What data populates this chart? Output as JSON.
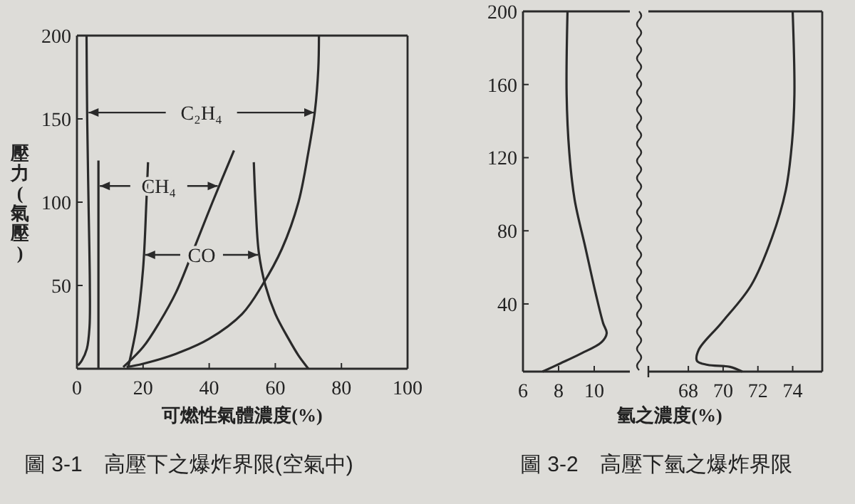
{
  "chart_data": [
    {
      "type": "line",
      "title": "圖 3-1　高壓下之爆炸界限(空氣中)",
      "xlabel": "可燃性氣體濃度(%)",
      "ylabel": "壓力(氣壓)",
      "xlim": [
        0,
        100
      ],
      "ylim": [
        0,
        200
      ],
      "xticks": [
        0,
        20,
        40,
        60,
        80,
        100
      ],
      "yticks": [
        50,
        100,
        150,
        200
      ],
      "annotations": [
        {
          "text": "C₂H₄",
          "x": 72.2,
          "y": 153.8
        },
        {
          "text": "CH₄",
          "x": 43,
          "y": 109.7
        },
        {
          "text": "CO",
          "x": 55.2,
          "y": 68.4
        }
      ],
      "series": [
        {
          "color": "#2a2a2a",
          "x": [
            0.3,
            1.5,
            3,
            3.8,
            3.9,
            3.5,
            3.1,
            2.9
          ],
          "values": [
            2,
            5,
            12,
            25,
            50,
            100,
            150,
            200
          ]
        },
        {
          "color": "#2a2a2a",
          "x": [
            15,
            20,
            30,
            40,
            50,
            56,
            62,
            67,
            70,
            72,
            73,
            73.2
          ],
          "values": [
            1,
            3,
            9,
            18,
            33,
            50,
            72,
            100,
            130,
            155,
            180,
            200
          ]
        },
        {
          "color": "#2a2a2a",
          "x": [
            6.5,
            6.5
          ],
          "values": [
            0,
            125
          ]
        },
        {
          "color": "#2a2a2a",
          "x": [
            14,
            20,
            25,
            30,
            35,
            41,
            47.5
          ],
          "values": [
            1,
            13,
            28,
            46,
            70,
            100,
            131
          ]
        },
        {
          "color": "#2a2a2a",
          "x": [
            15.5,
            18,
            20,
            21,
            21.5
          ],
          "values": [
            1,
            25,
            60,
            100,
            124
          ]
        },
        {
          "color": "#2a2a2a",
          "x": [
            53.5,
            54,
            55,
            57,
            60,
            64,
            67,
            70
          ],
          "values": [
            124,
            100,
            70,
            50,
            33,
            18,
            8,
            0
          ]
        }
      ]
    },
    {
      "type": "line",
      "title": "圖 3-2　高壓下氫之爆炸界限",
      "xlabel": "氫之濃度(%)",
      "xlim": [
        6,
        12
      ],
      "ylim": [
        3,
        200
      ],
      "xticks": [
        6,
        8,
        10
      ],
      "yticks": [
        40,
        80,
        120,
        160,
        200
      ],
      "series": [
        {
          "color": "#2a2a2a",
          "x": [
            7.1,
            8.1,
            9.2,
            10.4,
            10.7,
            10.5,
            10.1,
            9.5,
            8.9,
            8.6,
            8.45,
            8.5
          ],
          "values": [
            3,
            7.5,
            12.6,
            19,
            24,
            29.5,
            45,
            71,
            97,
            123,
            154.6,
            200
          ]
        }
      ]
    },
    {
      "type": "line",
      "xlim": [
        65.7,
        75.7
      ],
      "ylim": [
        3,
        200
      ],
      "xticks": [
        68,
        70,
        72,
        74
      ],
      "tick_labels": "x",
      "series": [
        {
          "color": "#2a2a2a",
          "x": [
            71.1,
            70.4,
            69.1,
            68.5,
            68.6,
            69.9,
            71.6,
            72.8,
            73.6,
            73.96,
            74.1,
            74
          ],
          "values": [
            3,
            5.6,
            6.7,
            8.8,
            15,
            29.6,
            50,
            76,
            102,
            128,
            154.6,
            200
          ]
        }
      ]
    }
  ]
}
